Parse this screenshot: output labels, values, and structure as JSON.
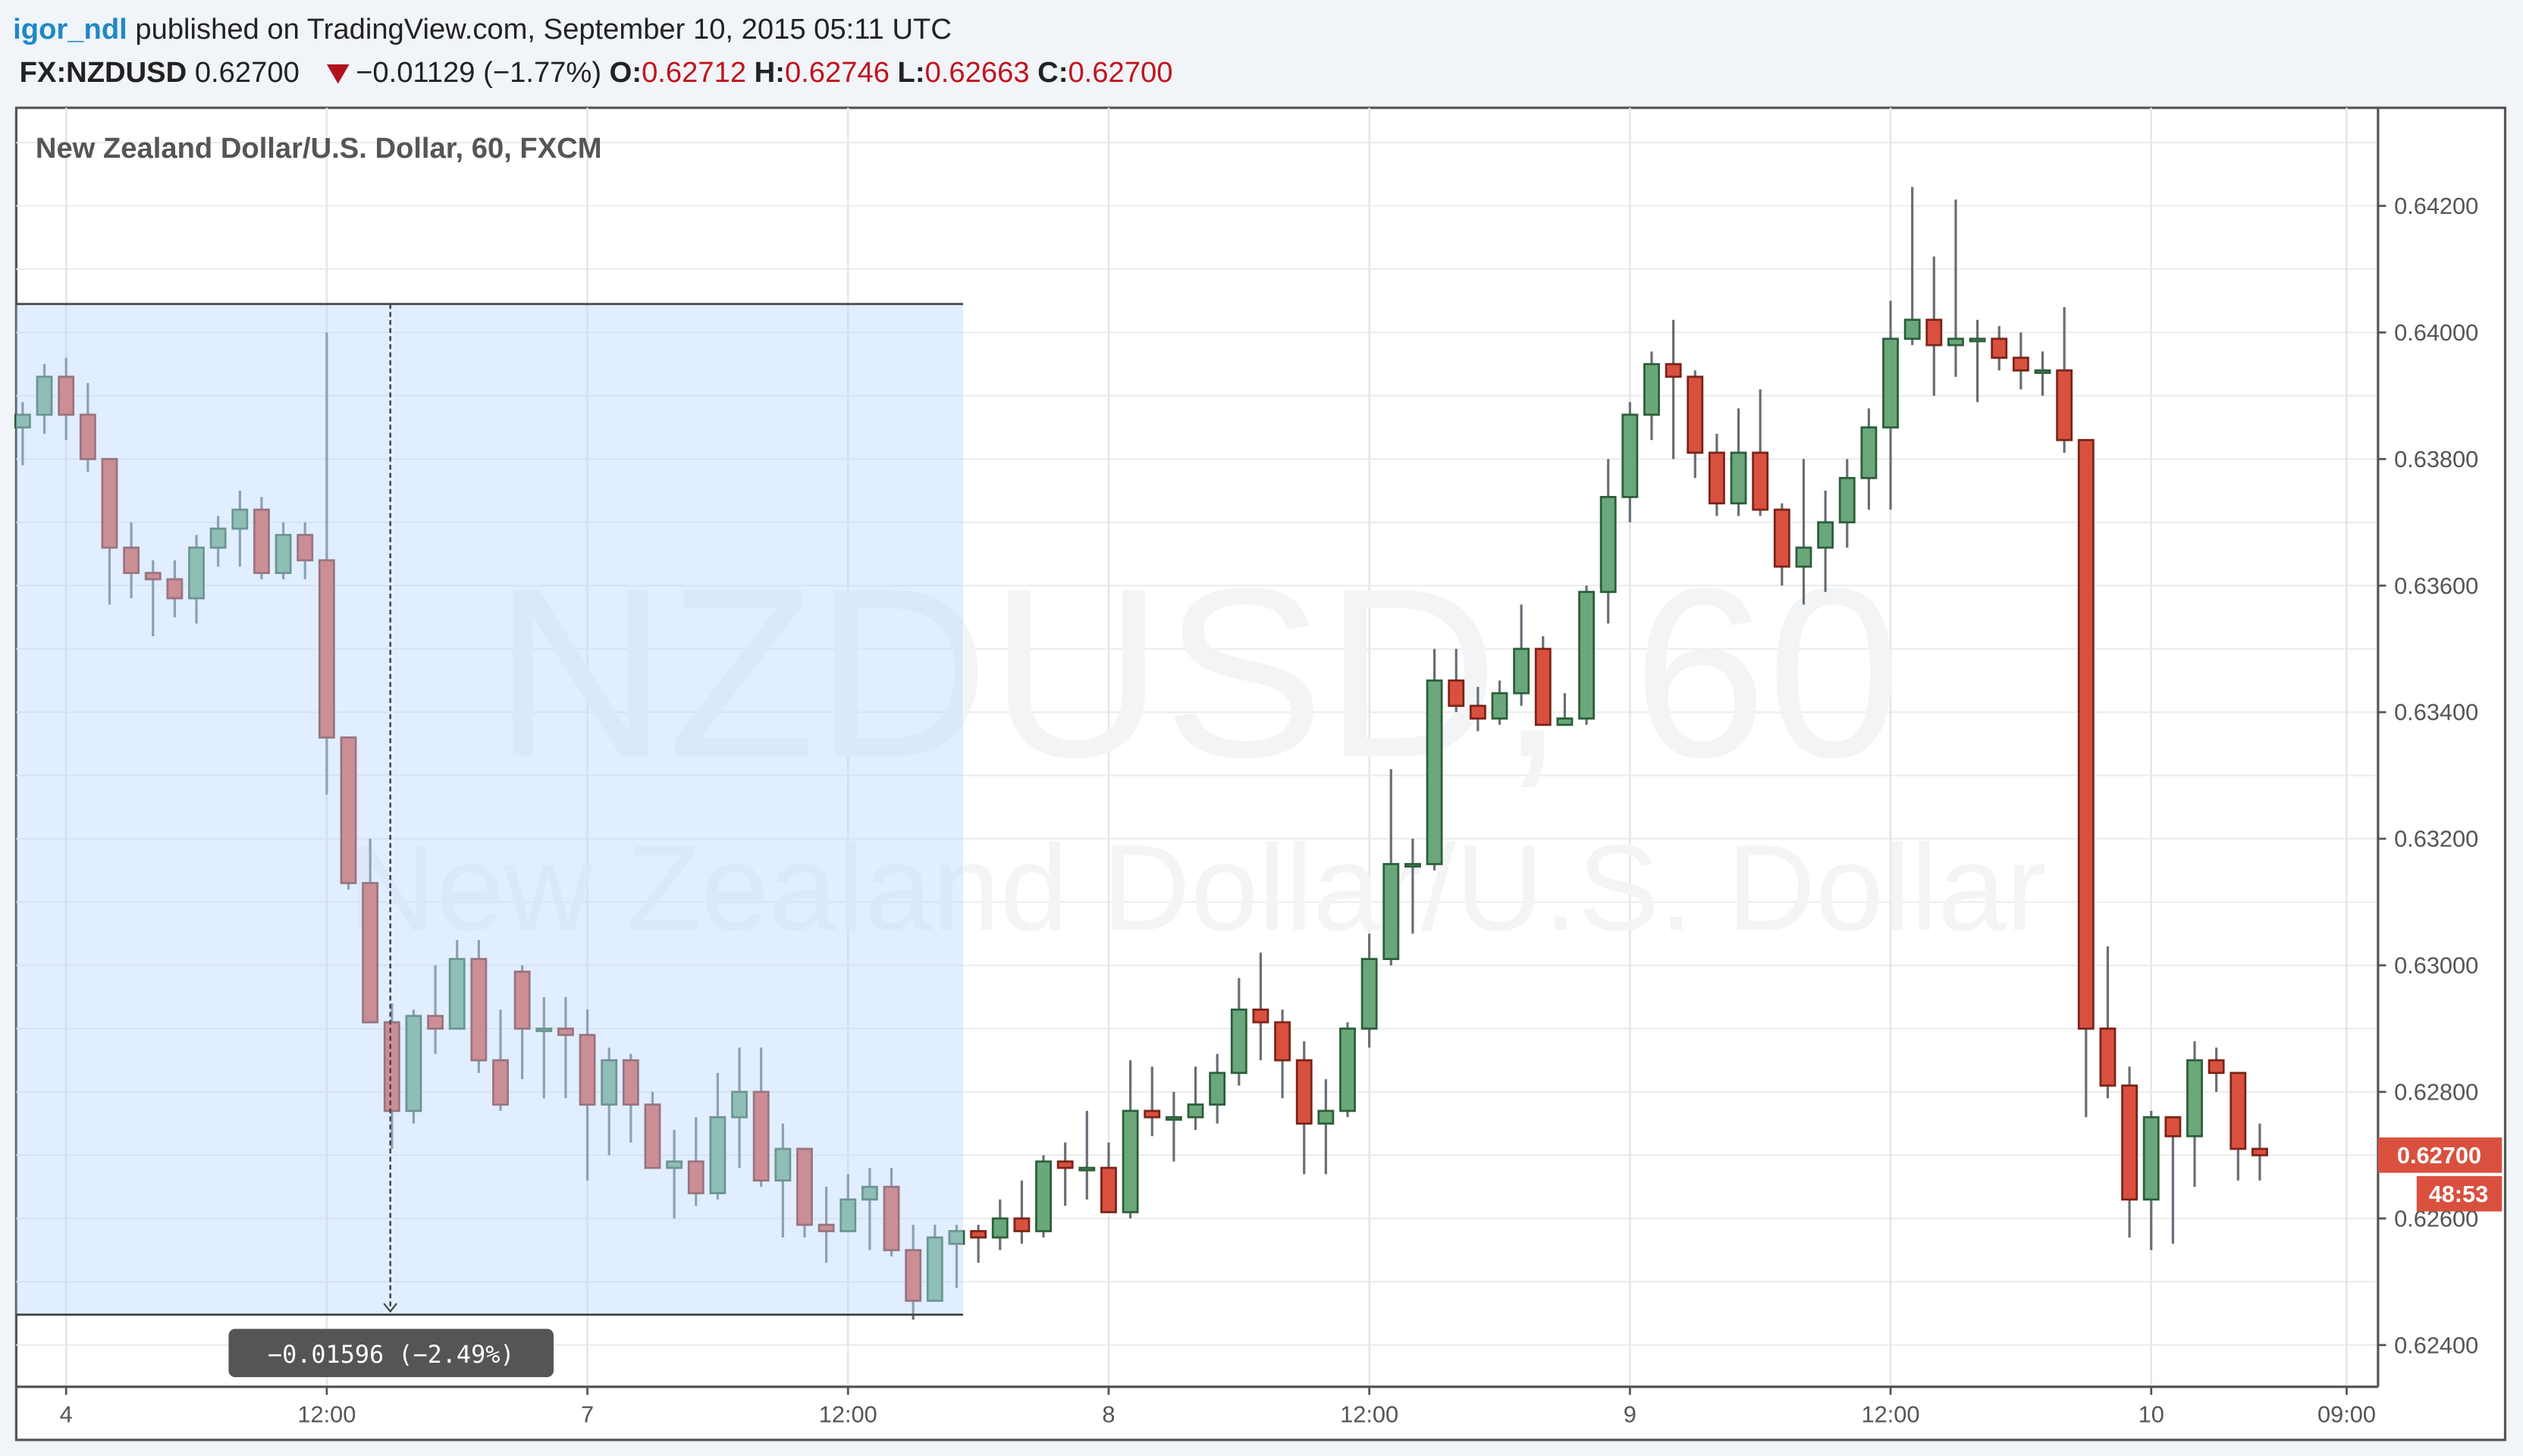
{
  "header": {
    "author": "igor_ndl",
    "published": " published on TradingView.com, September 10, 2015 05:11 UTC",
    "symbol": "FX:NZDUSD",
    "last": "0.62700",
    "change": "−0.01129 (−1.77%)",
    "o_label": "O:",
    "o_value": "0.62712",
    "h_label": "H:",
    "h_value": "0.62746",
    "l_label": "L:",
    "l_value": "0.62663",
    "c_label": "C:",
    "c_value": "0.62700",
    "direction_icon": "triangle-down-icon"
  },
  "colors": {
    "author": "#1e88c8",
    "ohlc_value": "#c0141c",
    "up_fill": "#6aa87c",
    "up_border": "#2c5e3a",
    "down_fill": "#d9503f",
    "down_border": "#7a2418",
    "wick": "#666f78",
    "selection": "#bcd9ff",
    "price_tag": "#d9503f"
  },
  "chart_data": {
    "type": "candlestick",
    "title": "New Zealand Dollar/U.S. Dollar, 60, FXCM",
    "watermark_symbol": "NZDUSD, 60",
    "watermark_name": "New Zealand Dollar/U.S. Dollar",
    "interval_minutes": 60,
    "ylim": [
      0.62334,
      0.64355
    ],
    "y_ticks": [
      "0.62400",
      "0.62600",
      "0.62800",
      "0.63000",
      "0.63200",
      "0.63400",
      "0.63600",
      "0.63800",
      "0.64000",
      "0.64200"
    ],
    "x_ticks": [
      {
        "label": "4",
        "bar": 2
      },
      {
        "label": "12:00",
        "bar": 14
      },
      {
        "label": "7",
        "bar": 26
      },
      {
        "label": "12:00",
        "bar": 38
      },
      {
        "label": "8",
        "bar": 50
      },
      {
        "label": "12:00",
        "bar": 62
      },
      {
        "label": "9",
        "bar": 74
      },
      {
        "label": "12:00",
        "bar": 86
      },
      {
        "label": "10",
        "bar": 98
      },
      {
        "label": "09:00",
        "bar": 107
      }
    ],
    "grid": true,
    "candles_ohlc": [
      [
        0.6385,
        0.6389,
        0.6379,
        0.6387
      ],
      [
        0.6387,
        0.6395,
        0.6384,
        0.6393
      ],
      [
        0.6393,
        0.6396,
        0.6383,
        0.6387
      ],
      [
        0.6387,
        0.6392,
        0.6378,
        0.638
      ],
      [
        0.638,
        0.638,
        0.6357,
        0.6366
      ],
      [
        0.6366,
        0.637,
        0.6358,
        0.6362
      ],
      [
        0.6362,
        0.6364,
        0.6352,
        0.6361
      ],
      [
        0.6361,
        0.6364,
        0.6355,
        0.6358
      ],
      [
        0.6358,
        0.6368,
        0.6354,
        0.6366
      ],
      [
        0.6366,
        0.6371,
        0.6363,
        0.6369
      ],
      [
        0.6369,
        0.6375,
        0.6363,
        0.6372
      ],
      [
        0.6372,
        0.6374,
        0.6361,
        0.6362
      ],
      [
        0.6362,
        0.637,
        0.6361,
        0.6368
      ],
      [
        0.6368,
        0.637,
        0.6361,
        0.6364
      ],
      [
        0.6364,
        0.64,
        0.6327,
        0.6336
      ],
      [
        0.6336,
        0.6336,
        0.6312,
        0.6313
      ],
      [
        0.6313,
        0.632,
        0.6291,
        0.6291
      ],
      [
        0.6291,
        0.6294,
        0.6271,
        0.6277
      ],
      [
        0.6277,
        0.6293,
        0.6275,
        0.6292
      ],
      [
        0.6292,
        0.63,
        0.6286,
        0.629
      ],
      [
        0.629,
        0.6304,
        0.629,
        0.6301
      ],
      [
        0.6301,
        0.6304,
        0.6283,
        0.6285
      ],
      [
        0.6285,
        0.6293,
        0.6277,
        0.6278
      ],
      [
        0.6299,
        0.63,
        0.6282,
        0.629
      ],
      [
        0.629,
        0.6295,
        0.6279,
        0.629
      ],
      [
        0.629,
        0.6295,
        0.6279,
        0.6289
      ],
      [
        0.6289,
        0.6293,
        0.6266,
        0.6278
      ],
      [
        0.6278,
        0.6287,
        0.627,
        0.6285
      ],
      [
        0.6285,
        0.6286,
        0.6272,
        0.6278
      ],
      [
        0.6278,
        0.628,
        0.6268,
        0.6268
      ],
      [
        0.6268,
        0.6274,
        0.626,
        0.6269
      ],
      [
        0.6269,
        0.6276,
        0.6262,
        0.6264
      ],
      [
        0.6264,
        0.6283,
        0.6263,
        0.6276
      ],
      [
        0.6276,
        0.6287,
        0.6268,
        0.628
      ],
      [
        0.628,
        0.6287,
        0.6265,
        0.6266
      ],
      [
        0.6266,
        0.6275,
        0.6257,
        0.6271
      ],
      [
        0.6271,
        0.6271,
        0.6257,
        0.6259
      ],
      [
        0.6259,
        0.6265,
        0.6253,
        0.6258
      ],
      [
        0.6258,
        0.6267,
        0.6258,
        0.6263
      ],
      [
        0.6263,
        0.6268,
        0.6255,
        0.6265
      ],
      [
        0.6265,
        0.6268,
        0.6254,
        0.6255
      ],
      [
        0.6255,
        0.6259,
        0.6244,
        0.6247
      ],
      [
        0.6247,
        0.6259,
        0.6247,
        0.6257
      ],
      [
        0.6256,
        0.6259,
        0.6249,
        0.6258
      ],
      [
        0.6258,
        0.6259,
        0.6253,
        0.6257
      ],
      [
        0.6257,
        0.6263,
        0.6255,
        0.626
      ],
      [
        0.626,
        0.6266,
        0.6256,
        0.6258
      ],
      [
        0.6258,
        0.627,
        0.6257,
        0.6269
      ],
      [
        0.6269,
        0.6272,
        0.6262,
        0.6268
      ],
      [
        0.6268,
        0.6277,
        0.6263,
        0.6268
      ],
      [
        0.6268,
        0.6272,
        0.6261,
        0.6261
      ],
      [
        0.6261,
        0.6285,
        0.626,
        0.6277
      ],
      [
        0.6277,
        0.6284,
        0.6273,
        0.6276
      ],
      [
        0.6276,
        0.628,
        0.6269,
        0.6276
      ],
      [
        0.6276,
        0.6284,
        0.6274,
        0.6278
      ],
      [
        0.6278,
        0.6286,
        0.6275,
        0.6283
      ],
      [
        0.6283,
        0.6298,
        0.6281,
        0.6293
      ],
      [
        0.6293,
        0.6302,
        0.6285,
        0.6291
      ],
      [
        0.6291,
        0.6293,
        0.6279,
        0.6285
      ],
      [
        0.6285,
        0.6288,
        0.6267,
        0.6275
      ],
      [
        0.6275,
        0.6282,
        0.6267,
        0.6277
      ],
      [
        0.6277,
        0.6291,
        0.6276,
        0.629
      ],
      [
        0.629,
        0.6305,
        0.6287,
        0.6301
      ],
      [
        0.6301,
        0.6331,
        0.63,
        0.6316
      ],
      [
        0.6316,
        0.632,
        0.6305,
        0.6316
      ],
      [
        0.6316,
        0.635,
        0.6315,
        0.6345
      ],
      [
        0.6345,
        0.635,
        0.634,
        0.6341
      ],
      [
        0.6341,
        0.6344,
        0.6337,
        0.6339
      ],
      [
        0.6339,
        0.6345,
        0.6338,
        0.6343
      ],
      [
        0.6343,
        0.6357,
        0.6341,
        0.635
      ],
      [
        0.635,
        0.6352,
        0.6338,
        0.6338
      ],
      [
        0.6338,
        0.6343,
        0.6338,
        0.6339
      ],
      [
        0.6339,
        0.636,
        0.6338,
        0.6359
      ],
      [
        0.6359,
        0.638,
        0.6354,
        0.6374
      ],
      [
        0.6374,
        0.6389,
        0.637,
        0.6387
      ],
      [
        0.6387,
        0.6397,
        0.6383,
        0.6395
      ],
      [
        0.6395,
        0.6402,
        0.638,
        0.6393
      ],
      [
        0.6393,
        0.6394,
        0.6377,
        0.6381
      ],
      [
        0.6381,
        0.6384,
        0.6371,
        0.6373
      ],
      [
        0.6373,
        0.6388,
        0.6371,
        0.6381
      ],
      [
        0.6381,
        0.6391,
        0.6371,
        0.6372
      ],
      [
        0.6372,
        0.6373,
        0.636,
        0.6363
      ],
      [
        0.6363,
        0.638,
        0.6357,
        0.6366
      ],
      [
        0.6366,
        0.6375,
        0.6359,
        0.637
      ],
      [
        0.637,
        0.638,
        0.6366,
        0.6377
      ],
      [
        0.6377,
        0.6388,
        0.6372,
        0.6385
      ],
      [
        0.6385,
        0.6405,
        0.6372,
        0.6399
      ],
      [
        0.6399,
        0.6423,
        0.6398,
        0.6402
      ],
      [
        0.6402,
        0.6412,
        0.639,
        0.6398
      ],
      [
        0.6398,
        0.6421,
        0.6393,
        0.6399
      ],
      [
        0.6399,
        0.6402,
        0.6389,
        0.6399
      ],
      [
        0.6399,
        0.6401,
        0.6394,
        0.6396
      ],
      [
        0.6396,
        0.64,
        0.6391,
        0.6394
      ],
      [
        0.6394,
        0.6397,
        0.639,
        0.6394
      ],
      [
        0.6394,
        0.6404,
        0.6381,
        0.6383
      ],
      [
        0.6383,
        0.6383,
        0.6276,
        0.629
      ],
      [
        0.629,
        0.6303,
        0.6279,
        0.6281
      ],
      [
        0.6281,
        0.6284,
        0.6257,
        0.6263
      ],
      [
        0.6263,
        0.6277,
        0.6255,
        0.6276
      ],
      [
        0.6276,
        0.6276,
        0.6256,
        0.6273
      ],
      [
        0.6273,
        0.6288,
        0.6265,
        0.6285
      ],
      [
        0.6285,
        0.6287,
        0.628,
        0.6283
      ],
      [
        0.6283,
        0.6283,
        0.6266,
        0.6271
      ],
      [
        0.6271,
        0.6275,
        0.6266,
        0.627
      ]
    ],
    "last_price_tag": "0.62700",
    "countdown_tag": "48:53",
    "measurement": {
      "start_bar": 0,
      "end_bar": 43,
      "marker_bar": 17,
      "price_high": 0.64045,
      "price_low": 0.62448,
      "label": "−0.01596 (−2.49%)"
    }
  }
}
